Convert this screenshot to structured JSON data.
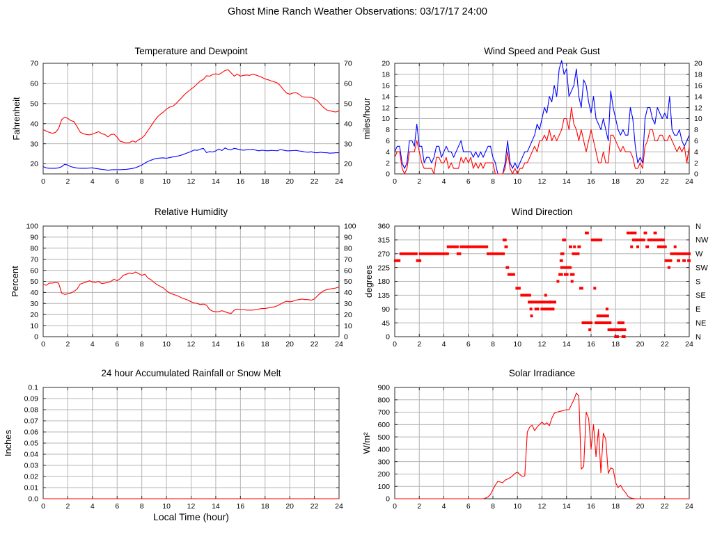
{
  "page_title": "Ghost Mine Ranch Weather Observations: 03/17/17 24:00",
  "colors": {
    "red": "#ff0000",
    "blue": "#0000ff",
    "grid": "#b4b4b4",
    "border": "#2a2a2a",
    "text": "#000000",
    "background": "#ffffff"
  },
  "x_axis": {
    "min": 0,
    "max": 24,
    "tick_step": 2,
    "label": "Local Time (hour)"
  },
  "chart_data": [
    {
      "id": "temperature",
      "type": "line",
      "title": "Temperature and Dewpoint",
      "ylabel": "Fahrenheit",
      "ylim": [
        15,
        70
      ],
      "yticks": [
        20,
        30,
        40,
        50,
        60,
        70
      ],
      "right_labels": "mirror",
      "grid": true,
      "series": [
        {
          "name": "dewpoint",
          "color": "blue",
          "x_step": 0.25,
          "values": [
            18.6,
            18,
            17.8,
            17.8,
            17.8,
            18,
            18.6,
            19.8,
            19.4,
            18.6,
            18.2,
            17.9,
            17.8,
            17.8,
            17.8,
            17.9,
            18,
            17.7,
            17.5,
            17.3,
            17.1,
            16.8,
            17,
            17.1,
            17.1,
            17.1,
            17.2,
            17.3,
            17.5,
            17.7,
            18.1,
            18.7,
            19.4,
            20.4,
            21.2,
            21.8,
            22.4,
            22.7,
            22.9,
            23,
            22.8,
            23.1,
            23.4,
            23.7,
            24,
            24.4,
            25,
            25.6,
            26.1,
            26.9,
            26.7,
            27.3,
            27.7,
            25.6,
            26.1,
            25.9,
            26.4,
            27.4,
            26.6,
            27.9,
            27.2,
            27,
            27.7,
            27.4,
            27,
            26.8,
            27,
            27.1,
            27.2,
            26.8,
            26.5,
            26.8,
            26.6,
            26.5,
            26.7,
            26.6,
            26.5,
            27.1,
            26.8,
            26.5,
            26.5,
            26.6,
            26.7,
            26.4,
            26.2,
            25.9,
            25.8,
            26,
            25.6,
            25.5,
            25.8,
            25.6,
            25.5,
            25.3,
            25.4,
            25.5,
            25.5
          ]
        },
        {
          "name": "temperature",
          "color": "red",
          "x_step": 0.25,
          "values": [
            37,
            36.3,
            35.6,
            35.2,
            35.6,
            37.5,
            42,
            43.2,
            42.6,
            41.5,
            41,
            38.5,
            35.8,
            35,
            34.6,
            34.4,
            34.8,
            35.4,
            36,
            35,
            34.6,
            33.4,
            34.6,
            34.8,
            33.2,
            31.2,
            30.8,
            30.4,
            30.6,
            31.4,
            30.8,
            32,
            32.8,
            34.3,
            36.6,
            38.8,
            41.2,
            43.2,
            44.6,
            45.8,
            47.2,
            48.2,
            48.6,
            49.8,
            51.4,
            53,
            54.6,
            56,
            57.2,
            58.3,
            59.8,
            61.2,
            62,
            63.8,
            63.6,
            64.4,
            64.8,
            64.4,
            65.4,
            66.4,
            66.8,
            65.2,
            63.6,
            64.6,
            63.6,
            64,
            64.2,
            64,
            64.6,
            64.2,
            63.6,
            63,
            62.2,
            61.8,
            61.2,
            60.8,
            60.2,
            58.8,
            56.8,
            55.2,
            54.6,
            55.2,
            55.4,
            54.6,
            53.4,
            53.2,
            53.2,
            53,
            52.4,
            51.4,
            49.6,
            48,
            46.8,
            46.4,
            46,
            45.8,
            46.4
          ]
        }
      ]
    },
    {
      "id": "wind",
      "type": "line",
      "title": "Wind Speed and Peak Gust",
      "ylabel": "miles/hour",
      "ylim": [
        0,
        20
      ],
      "yticks": [
        0,
        2,
        4,
        6,
        8,
        10,
        12,
        14,
        16,
        18,
        20
      ],
      "right_labels": "mirror",
      "grid": true,
      "series": [
        {
          "name": "peak_gust",
          "color": "blue",
          "x_step": 0.2,
          "values": [
            4,
            5,
            5,
            2,
            1,
            2,
            6,
            6,
            5,
            9,
            5,
            5,
            2,
            3,
            3,
            2,
            3,
            5,
            5,
            3,
            4,
            5,
            4,
            4,
            3,
            4,
            5,
            6,
            4,
            4,
            4,
            4,
            3,
            4,
            3,
            4,
            3,
            4,
            5,
            5,
            3,
            2,
            0,
            0,
            0,
            2,
            6,
            2,
            1,
            2,
            1,
            2,
            3,
            4,
            4,
            5,
            6,
            7,
            9,
            8,
            10,
            12,
            11,
            14,
            13,
            16,
            14,
            19,
            20.5,
            18,
            19,
            14,
            15,
            16,
            19,
            14,
            12,
            17,
            16,
            13,
            11,
            14,
            10,
            9,
            8,
            10,
            8,
            6,
            15,
            12,
            10,
            8,
            7,
            8,
            7,
            7,
            12,
            10,
            5,
            2,
            3,
            2,
            10,
            12,
            12,
            10,
            9,
            12,
            11,
            10,
            11,
            10,
            14,
            8,
            7,
            7,
            8,
            6,
            5,
            6,
            7
          ]
        },
        {
          "name": "wind_speed",
          "color": "red",
          "x_step": 0.2,
          "values": [
            3,
            4,
            4,
            1,
            0,
            1,
            4,
            4,
            4,
            6,
            4,
            2,
            1,
            1,
            1,
            1,
            0,
            3,
            3,
            2,
            2,
            3,
            1,
            2,
            1,
            1,
            1,
            3,
            2,
            3,
            2,
            3,
            1,
            2,
            1,
            2,
            1,
            2,
            2,
            2,
            2,
            0,
            0,
            0,
            0,
            1,
            4,
            1,
            0,
            1,
            0,
            1,
            1,
            2,
            2,
            3,
            4,
            5,
            4,
            6,
            6,
            7,
            6,
            8,
            6,
            7,
            6,
            7,
            8,
            10,
            10,
            8,
            12,
            9,
            8,
            6,
            8,
            6,
            4,
            6,
            8,
            6,
            4,
            2,
            2,
            4,
            2,
            2,
            7,
            7,
            6,
            5,
            4,
            5,
            4,
            4,
            4,
            3,
            1,
            1,
            2,
            1,
            5,
            6,
            8,
            8,
            6,
            6,
            7,
            7,
            6,
            6,
            7,
            6,
            5,
            4,
            5,
            4,
            5,
            2,
            5
          ]
        }
      ]
    },
    {
      "id": "humidity",
      "type": "line",
      "title": "Relative Humidity",
      "ylabel": "Percent",
      "ylim": [
        0,
        100
      ],
      "yticks": [
        0,
        10,
        20,
        30,
        40,
        50,
        60,
        70,
        80,
        90,
        100
      ],
      "right_labels": "mirror",
      "grid": true,
      "series": [
        {
          "name": "relative_humidity",
          "color": "red",
          "x_step": 0.25,
          "values": [
            47.5,
            46.5,
            48.5,
            48.5,
            49,
            48.5,
            39.5,
            38.2,
            38.8,
            39.5,
            41,
            43,
            47.5,
            48.5,
            49.5,
            50.5,
            49.5,
            49,
            50,
            48,
            48.5,
            49,
            50,
            52,
            50.5,
            52.5,
            55.5,
            56.5,
            57.5,
            57,
            58.5,
            57,
            55.5,
            56.5,
            53,
            51.5,
            49,
            47,
            45.5,
            44,
            41.5,
            39.5,
            38.5,
            37.5,
            36.5,
            35,
            34,
            33,
            31.5,
            30.5,
            30,
            29,
            29.5,
            28.5,
            24.5,
            23,
            22.5,
            22.5,
            23.5,
            22.5,
            21.5,
            21,
            24,
            25,
            24.5,
            24.5,
            24,
            24,
            24,
            24.5,
            25,
            25.5,
            25.5,
            26,
            26.5,
            27,
            28,
            29.5,
            31,
            32,
            31.5,
            32,
            33,
            33.5,
            34,
            33.5,
            33.5,
            33,
            34,
            37,
            39.5,
            41.5,
            42.5,
            43,
            43.5,
            44,
            45
          ]
        }
      ]
    },
    {
      "id": "wind_direction",
      "type": "scatter",
      "title": "Wind Direction",
      "ylabel": "degrees",
      "ylim": [
        0,
        360
      ],
      "yticks": [
        0,
        45,
        90,
        135,
        180,
        225,
        270,
        315,
        360
      ],
      "right_labels": [
        "N",
        "NE",
        "E",
        "SE",
        "S",
        "SW",
        "W",
        "NW",
        "N"
      ],
      "grid": true,
      "point_color": "red",
      "segments": [
        [
          0.05,
          0.35,
          247.5
        ],
        [
          0.5,
          1.75,
          270
        ],
        [
          1.85,
          2.05,
          247.5
        ],
        [
          2.1,
          4.3,
          270
        ],
        [
          4.35,
          5.1,
          292.5
        ],
        [
          5.15,
          5.3,
          270
        ],
        [
          5.4,
          7.5,
          292.5
        ],
        [
          7.6,
          8.85,
          270
        ],
        [
          8.9,
          9.0,
          315
        ],
        [
          9.05,
          9.1,
          292.5
        ],
        [
          9.15,
          9.2,
          225
        ],
        [
          9.3,
          9.7,
          202.5
        ],
        [
          9.95,
          10.15,
          157.5
        ],
        [
          10.35,
          11.0,
          135
        ],
        [
          10.95,
          11.05,
          112.5
        ],
        [
          11.1,
          11.1,
          90
        ],
        [
          11.15,
          11.15,
          67.5
        ],
        [
          11.2,
          11.95,
          112.5
        ],
        [
          11.5,
          11.65,
          90
        ],
        [
          12.0,
          12.45,
          90
        ],
        [
          12.05,
          12.6,
          112.5
        ],
        [
          12.3,
          12.3,
          135
        ],
        [
          12.65,
          12.9,
          90
        ],
        [
          12.7,
          13.05,
          112.5
        ],
        [
          13.3,
          13.3,
          180
        ],
        [
          13.45,
          13.6,
          202.5
        ],
        [
          13.55,
          13.6,
          247.5
        ],
        [
          13.6,
          13.7,
          270
        ],
        [
          13.75,
          13.85,
          315
        ],
        [
          13.6,
          14.3,
          225
        ],
        [
          13.9,
          14.05,
          202.5
        ],
        [
          14.3,
          14.35,
          292.5
        ],
        [
          14.4,
          14.55,
          202.5
        ],
        [
          14.45,
          14.45,
          180
        ],
        [
          14.55,
          14.95,
          270
        ],
        [
          14.65,
          14.65,
          292.5
        ],
        [
          15.0,
          15.05,
          292.5
        ],
        [
          15.15,
          15.25,
          157.5
        ],
        [
          15.35,
          16.0,
          45
        ],
        [
          15.6,
          15.7,
          337.5
        ],
        [
          15.9,
          15.9,
          22.5
        ],
        [
          16.1,
          16.25,
          315
        ],
        [
          16.3,
          16.3,
          157.5
        ],
        [
          16.45,
          16.8,
          315
        ],
        [
          16.4,
          17.55,
          45
        ],
        [
          16.55,
          16.8,
          67.5
        ],
        [
          16.95,
          17.35,
          67.5
        ],
        [
          17.3,
          17.3,
          90
        ],
        [
          17.45,
          17.5,
          22.5
        ],
        [
          17.7,
          18.45,
          22.5
        ],
        [
          18.0,
          18.15,
          0
        ],
        [
          18.25,
          18.6,
          45
        ],
        [
          18.5,
          18.75,
          22.5
        ],
        [
          18.6,
          18.7,
          0
        ],
        [
          19.0,
          19.3,
          337.5
        ],
        [
          19.35,
          19.6,
          337.5
        ],
        [
          19.3,
          19.3,
          292.5
        ],
        [
          19.45,
          20.3,
          315
        ],
        [
          19.8,
          19.8,
          292.5
        ],
        [
          20.4,
          20.45,
          337.5
        ],
        [
          20.55,
          20.6,
          292.5
        ],
        [
          20.7,
          21.9,
          315
        ],
        [
          21.2,
          21.25,
          337.5
        ],
        [
          21.5,
          21.55,
          292.5
        ],
        [
          21.75,
          21.8,
          292.5
        ],
        [
          22.0,
          22.05,
          292.5
        ],
        [
          22.1,
          22.5,
          247.5
        ],
        [
          22.35,
          22.35,
          225
        ],
        [
          22.55,
          23.05,
          270
        ],
        [
          22.85,
          22.85,
          292.5
        ],
        [
          23.1,
          23.15,
          247.5
        ],
        [
          23.2,
          23.5,
          270
        ],
        [
          23.55,
          23.6,
          247.5
        ],
        [
          23.65,
          24.0,
          270
        ],
        [
          23.95,
          24.0,
          247.5
        ]
      ]
    },
    {
      "id": "rainfall",
      "type": "line",
      "title": "24 hour Accumulated Rainfall or Snow Melt",
      "ylabel": "Inches",
      "ylim": [
        0,
        0.1
      ],
      "yticks": [
        0,
        0.01,
        0.02,
        0.03,
        0.04,
        0.05,
        0.06,
        0.07,
        0.08,
        0.09,
        0.1
      ],
      "ytick_labels": [
        "0.0",
        "0.01",
        "0.02",
        "0.03",
        "0.04",
        "0.05",
        "0.06",
        "0.07",
        "0.08",
        "0.09",
        "0.1"
      ],
      "right_labels": "none",
      "grid": true,
      "series": [
        {
          "name": "accumulated_rainfall",
          "color": "red",
          "x_step": 24,
          "values": [
            0,
            0
          ]
        }
      ]
    },
    {
      "id": "solar",
      "type": "line",
      "title": "Solar Irradiance",
      "ylabel": "W/m²",
      "ylim": [
        0,
        900
      ],
      "yticks": [
        0,
        100,
        200,
        300,
        400,
        500,
        600,
        700,
        800,
        900
      ],
      "right_labels": "none",
      "grid": true,
      "series": [
        {
          "name": "solar_irradiance",
          "color": "red",
          "x_step": 0.2,
          "values": [
            0,
            0,
            0,
            0,
            0,
            0,
            0,
            0,
            0,
            0,
            0,
            0,
            0,
            0,
            0,
            0,
            0,
            0,
            0,
            0,
            0,
            0,
            0,
            0,
            0,
            0,
            0,
            0,
            0,
            0,
            0,
            0,
            0,
            0,
            0,
            0,
            0,
            5,
            15,
            35,
            75,
            110,
            140,
            135,
            130,
            150,
            160,
            170,
            185,
            205,
            215,
            195,
            180,
            185,
            540,
            580,
            595,
            550,
            580,
            600,
            620,
            600,
            615,
            590,
            650,
            690,
            700,
            705,
            710,
            715,
            720,
            720,
            760,
            800,
            855,
            830,
            240,
            260,
            700,
            650,
            400,
            600,
            340,
            560,
            210,
            530,
            480,
            205,
            250,
            240,
            130,
            90,
            110,
            75,
            50,
            20,
            8,
            2,
            0,
            0,
            0,
            0,
            0,
            0,
            0,
            0,
            0,
            0,
            0,
            0,
            0,
            0,
            0,
            0,
            0,
            0,
            0,
            0,
            0,
            0,
            0
          ]
        }
      ]
    }
  ]
}
